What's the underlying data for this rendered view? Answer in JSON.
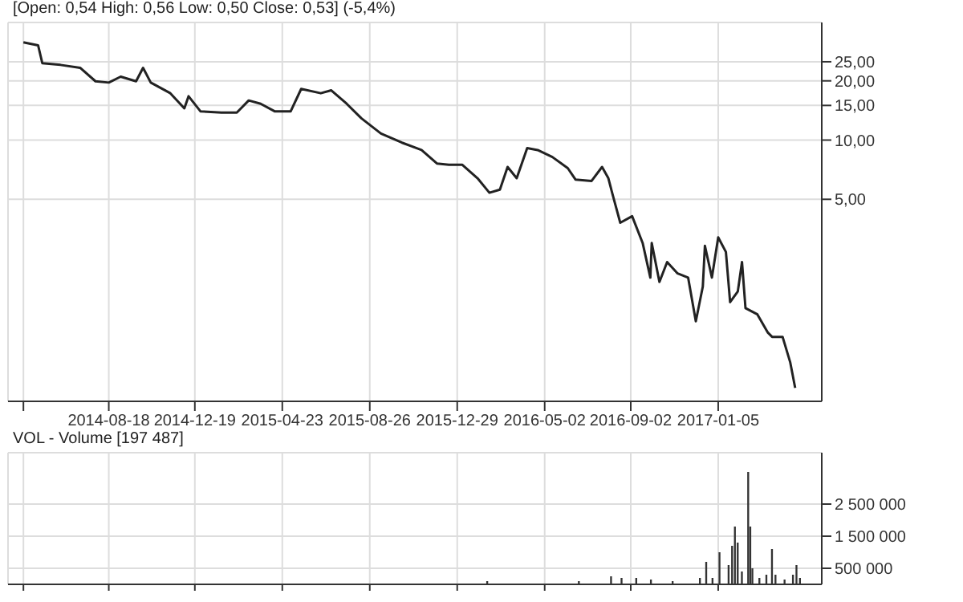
{
  "chart_data": [
    {
      "type": "line",
      "title": "[Open: 0,54 High: 0,56 Low: 0,50 Close: 0,53] (-5,4%)",
      "color": "#222222",
      "marker": "none",
      "log": true,
      "grid": true,
      "x": [
        "2014-04-18",
        "2014-05-09",
        "2014-05-15",
        "2014-06-10",
        "2014-07-08",
        "2014-07-30",
        "2014-08-18",
        "2014-09-04",
        "2014-09-26",
        "2014-10-06",
        "2014-10-17",
        "2014-11-14",
        "2014-12-04",
        "2014-12-10",
        "2014-12-27",
        "2015-01-26",
        "2015-02-17",
        "2015-03-06",
        "2015-03-23",
        "2015-04-12",
        "2015-05-05",
        "2015-05-20",
        "2015-06-17",
        "2015-07-02",
        "2015-07-24",
        "2015-08-14",
        "2015-09-11",
        "2015-10-11",
        "2015-11-08",
        "2015-11-30",
        "2015-12-17",
        "2016-01-05",
        "2016-01-27",
        "2016-02-13",
        "2016-02-28",
        "2016-03-10",
        "2016-03-23",
        "2016-04-07",
        "2016-04-22",
        "2016-05-13",
        "2016-06-04",
        "2016-06-15",
        "2016-07-08",
        "2016-07-23",
        "2016-08-01",
        "2016-08-07",
        "2016-08-18",
        "2016-09-04",
        "2016-09-19",
        "2016-09-30",
        "2016-10-02",
        "2016-10-13",
        "2016-10-24",
        "2016-11-08",
        "2016-11-23",
        "2016-12-04",
        "2016-12-14",
        "2016-12-17",
        "2016-12-27",
        "2017-01-05",
        "2017-01-16",
        "2017-01-22",
        "2017-02-02",
        "2017-02-08",
        "2017-02-13",
        "2017-03-02",
        "2017-03-17",
        "2017-03-23",
        "2017-04-07",
        "2017-04-18",
        "2017-04-25"
      ],
      "values": [
        31.4,
        30.3,
        24.6,
        24.1,
        23.3,
        19.9,
        19.6,
        21.0,
        19.9,
        23.3,
        19.6,
        17.3,
        14.5,
        16.7,
        14.0,
        13.8,
        13.8,
        15.9,
        15.3,
        14.0,
        14.0,
        18.2,
        17.3,
        17.9,
        15.3,
        12.9,
        10.8,
        9.7,
        8.9,
        7.6,
        7.5,
        7.5,
        6.4,
        5.4,
        5.6,
        7.3,
        6.4,
        9.1,
        8.9,
        8.2,
        7.2,
        6.3,
        6.2,
        7.3,
        6.4,
        5.3,
        3.8,
        4.1,
        3.0,
        2.0,
        3.0,
        1.9,
        2.4,
        2.1,
        2.0,
        1.2,
        1.8,
        2.9,
        2.0,
        3.2,
        2.7,
        1.5,
        1.7,
        2.4,
        1.4,
        1.3,
        1.05,
        1.0,
        1.0,
        0.74,
        0.55
      ],
      "xlim": [
        "2014-03-27",
        "2017-06-02"
      ],
      "xticks": [
        {
          "value": "2014-04-18",
          "label": null
        },
        "2014-08-18",
        "2014-12-19",
        "2015-04-23",
        "2015-08-26",
        "2015-12-29",
        "2016-05-02",
        "2016-09-02",
        "2017-01-05"
      ],
      "ylim": [
        0.47,
        39.6
      ],
      "yticks": [
        {
          "value": 5,
          "label": "5,00"
        },
        {
          "value": 10,
          "label": "10,00"
        },
        {
          "value": 15,
          "label": "15,00"
        },
        {
          "value": 20,
          "label": "20,00"
        },
        {
          "value": 25,
          "label": "25,00"
        }
      ]
    },
    {
      "type": "bar",
      "title": "VOL - Volume [197 487]",
      "color": "#333333",
      "grid": true,
      "tick_labels": "y",
      "x": [
        "2016-02-10",
        "2016-04-15",
        "2016-06-20",
        "2016-08-05",
        "2016-08-20",
        "2016-09-10",
        "2016-10-01",
        "2016-11-01",
        "2016-12-10",
        "2016-12-19",
        "2016-12-28",
        "2017-01-07",
        "2017-01-20",
        "2017-01-25",
        "2017-01-29",
        "2017-02-02",
        "2017-02-08",
        "2017-02-17",
        "2017-02-20",
        "2017-02-23",
        "2017-03-05",
        "2017-03-15",
        "2017-03-23",
        "2017-03-28",
        "2017-04-10",
        "2017-04-22",
        "2017-04-27",
        "2017-05-02"
      ],
      "values": [
        100000,
        null,
        100000,
        250000,
        200000,
        200000,
        150000,
        100000,
        200000,
        700000,
        200000,
        1000000,
        600000,
        1200000,
        1800000,
        1300000,
        400000,
        3500000,
        1800000,
        500000,
        200000,
        300000,
        1100000,
        300000,
        150000,
        300000,
        600000,
        200000
      ],
      "xlim": [
        "2014-03-27",
        "2017-06-02"
      ],
      "xticks": [
        {
          "value": "2014-04-18",
          "label": null
        },
        "2014-08-18",
        "2014-12-19",
        "2015-04-23",
        "2015-08-26",
        "2015-12-29",
        "2016-05-02",
        "2016-09-02",
        "2017-01-05"
      ],
      "ylim": [
        0,
        4100000
      ],
      "yticks": [
        {
          "value": 500000,
          "label": "500 000"
        },
        {
          "value": 1500000,
          "label": "1 500 000"
        },
        {
          "value": 2500000,
          "label": "2 500 000"
        }
      ]
    }
  ]
}
